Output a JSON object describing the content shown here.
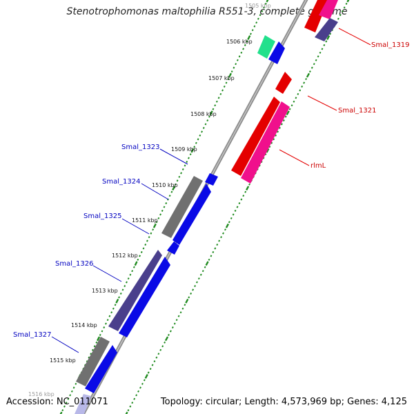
{
  "title": "Stenotrophomonas maltophilia R551-3, complete genome",
  "footer": {
    "accession": "Accession: NC_011071",
    "topology": "Topology: circular; Length: 4,573,969 bp; Genes: 4,125"
  },
  "ticks": [
    "1505 kbp",
    "1506 kbp",
    "1507 kbp",
    "1508 kbp",
    "1509 kbp",
    "1510 kbp",
    "1511 kbp",
    "1512 kbp",
    "1513 kbp",
    "1514 kbp",
    "1515 kbp",
    "1516 kbp"
  ],
  "gene_labels": {
    "smal_1319": "Smal_1319",
    "smal_1321": "Smal_1321",
    "rlml": "rlmL",
    "smal_1323": "Smal_1323",
    "smal_1324": "Smal_1324",
    "smal_1325": "Smal_1325",
    "smal_1326": "Smal_1326",
    "smal_1327": "Smal_1327"
  },
  "colors": {
    "backbone": "#8c8c8c",
    "tick_green": "#1e8a1e",
    "label_blue": "#0000c0",
    "label_red": "#cc0000",
    "gene_blue": "#0a0ae6",
    "gene_grey": "#707070",
    "gene_slate": "#4a3f8c",
    "gene_red": "#e40000",
    "gene_pink": "#f0108c",
    "gene_teal": "#22e08c"
  }
}
